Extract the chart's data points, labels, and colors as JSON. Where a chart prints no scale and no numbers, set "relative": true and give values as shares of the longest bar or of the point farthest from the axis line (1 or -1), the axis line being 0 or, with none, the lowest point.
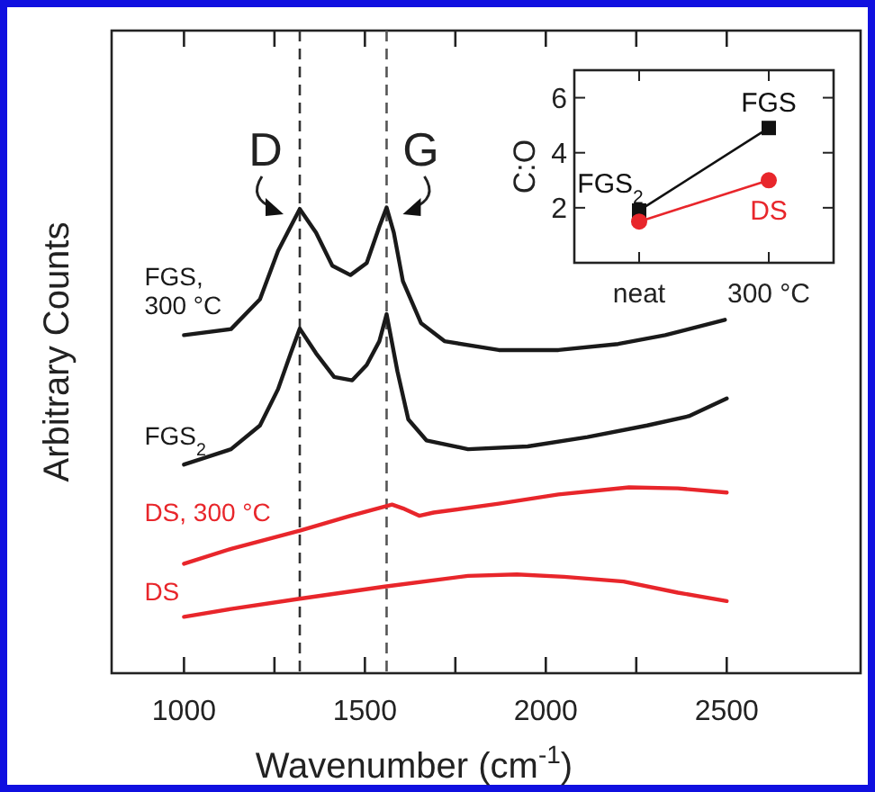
{
  "chart_data": [
    {
      "type": "line",
      "xlabel": "Wavenumber (cm$^{-1}$)",
      "ylabel": "Arbitrary Counts",
      "relative": true,
      "xlim": [
        800,
        2870
      ],
      "xticks": [
        1000,
        {
          "value": 1250,
          "label": null
        },
        1500,
        {
          "value": 1750,
          "label": null
        },
        2000,
        {
          "value": 2250,
          "label": null
        },
        2500
      ],
      "ref_lines": [
        {
          "axis": "x",
          "value": 1320,
          "label": "D",
          "color": "#333333",
          "line_style": "dashed"
        },
        {
          "axis": "x",
          "value": 1560,
          "label": "G",
          "color": "#555555",
          "line_style": "dashed"
        }
      ],
      "series": [
        {
          "name": "FGS, 300 °C",
          "color": "#1a1a1a",
          "x": [
            1000,
            1130,
            1210,
            1260,
            1320,
            1365,
            1410,
            1460,
            1505,
            1540,
            1560,
            1580,
            1605,
            1655,
            1720,
            1870,
            2035,
            2200,
            2330,
            2495
          ],
          "values": [
            0.726,
            0.739,
            0.803,
            0.907,
            0.997,
            0.946,
            0.875,
            0.855,
            0.881,
            0.959,
            1,
            0.946,
            0.842,
            0.752,
            0.713,
            0.694,
            0.694,
            0.707,
            0.726,
            0.759
          ]
        },
        {
          "name": "FGS$_{2}$",
          "color": "#1a1a1a",
          "x": [
            1000,
            1130,
            1210,
            1260,
            1295,
            1320,
            1365,
            1415,
            1465,
            1505,
            1540,
            1560,
            1590,
            1620,
            1670,
            1785,
            1950,
            2115,
            2280,
            2395,
            2500
          ],
          "values": [
            0.448,
            0.481,
            0.532,
            0.61,
            0.687,
            0.74,
            0.687,
            0.636,
            0.629,
            0.662,
            0.713,
            0.771,
            0.648,
            0.545,
            0.5,
            0.481,
            0.487,
            0.507,
            0.532,
            0.552,
            0.59
          ]
        },
        {
          "name": "DS, 300 °C",
          "color": "#e8262b",
          "x": [
            1000,
            1130,
            1320,
            1460,
            1575,
            1605,
            1650,
            1690,
            1870,
            2035,
            2230,
            2365,
            2500
          ],
          "values": [
            0.235,
            0.267,
            0.306,
            0.338,
            0.362,
            0.354,
            0.338,
            0.345,
            0.364,
            0.384,
            0.399,
            0.397,
            0.388
          ]
        },
        {
          "name": "DS",
          "color": "#e8262b",
          "x": [
            1000,
            1130,
            1320,
            1555,
            1785,
            1920,
            2050,
            2215,
            2365,
            2500
          ],
          "values": [
            0.121,
            0.138,
            0.16,
            0.186,
            0.209,
            0.212,
            0.207,
            0.197,
            0.173,
            0.155
          ]
        }
      ]
    },
    {
      "type": "line",
      "ylabel": "C:O",
      "categories": [
        "neat",
        "300 °C"
      ],
      "ylim": [
        0,
        7
      ],
      "yticks": [
        2,
        4,
        6
      ],
      "series": [
        {
          "color": "#111111",
          "marker": "square",
          "values": [
            1.9,
            4.9
          ]
        },
        {
          "color": "#e8262b",
          "marker": "circle",
          "values": [
            1.5,
            3.0
          ]
        }
      ],
      "annotations": [
        {
          "text": "FGS$_{2}$",
          "x": "neat",
          "y": 1.9
        },
        {
          "text": "FGS",
          "x": "300 °C",
          "y": 4.9
        },
        {
          "text": "DS",
          "x": "300 °C",
          "y": 3.0
        }
      ]
    }
  ]
}
